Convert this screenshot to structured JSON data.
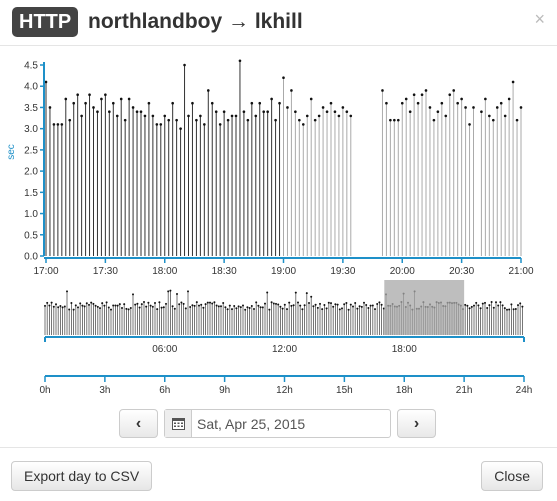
{
  "dialog": {
    "badge": "HTTP",
    "title": "northlandboy → lkhill",
    "close_glyph": "×",
    "close_icon": "close-icon"
  },
  "colors": {
    "axis": "#1e90c8",
    "stem_main": "#333333",
    "stem_faded": "#aaaaaa",
    "brush": "#a8a8a8",
    "text": "#333333"
  },
  "chart_data": [
    {
      "type": "scatter",
      "name": "detail",
      "ylabel": "sec",
      "y_ticks": [
        "0.0",
        "0.5",
        "1.0",
        "1.5",
        "2.0",
        "2.5",
        "3.0",
        "3.5",
        "4.0",
        "4.5"
      ],
      "ylim": [
        0,
        4.5
      ],
      "x_ticks": [
        "17:00",
        "17:30",
        "18:00",
        "18:30",
        "19:00",
        "19:30",
        "20:00",
        "20:30",
        "21:00"
      ],
      "x_range_min": [
        1020,
        1260
      ],
      "grid": false,
      "points": [
        [
          1020,
          4.1
        ],
        [
          1022,
          3.5
        ],
        [
          1024,
          3.1
        ],
        [
          1026,
          3.1
        ],
        [
          1028,
          3.1
        ],
        [
          1030,
          3.7
        ],
        [
          1032,
          3.2
        ],
        [
          1034,
          3.6
        ],
        [
          1036,
          3.8
        ],
        [
          1038,
          3.3
        ],
        [
          1040,
          3.6
        ],
        [
          1042,
          3.8
        ],
        [
          1044,
          3.5
        ],
        [
          1046,
          3.4
        ],
        [
          1048,
          3.7
        ],
        [
          1050,
          3.8
        ],
        [
          1052,
          3.4
        ],
        [
          1054,
          3.6
        ],
        [
          1056,
          3.3
        ],
        [
          1058,
          3.7
        ],
        [
          1060,
          3.2
        ],
        [
          1062,
          3.7
        ],
        [
          1064,
          3.5
        ],
        [
          1066,
          3.4
        ],
        [
          1068,
          3.4
        ],
        [
          1070,
          3.3
        ],
        [
          1072,
          3.6
        ],
        [
          1074,
          3.3
        ],
        [
          1076,
          3.1
        ],
        [
          1078,
          3.1
        ],
        [
          1080,
          3.3
        ],
        [
          1082,
          3.2
        ],
        [
          1084,
          3.6
        ],
        [
          1086,
          3.2
        ],
        [
          1088,
          3.0
        ],
        [
          1090,
          4.5
        ],
        [
          1092,
          3.3
        ],
        [
          1094,
          3.6
        ],
        [
          1096,
          3.2
        ],
        [
          1098,
          3.3
        ],
        [
          1100,
          3.1
        ],
        [
          1102,
          3.9
        ],
        [
          1104,
          3.6
        ],
        [
          1106,
          3.4
        ],
        [
          1108,
          3.1
        ],
        [
          1110,
          3.4
        ],
        [
          1112,
          3.2
        ],
        [
          1114,
          3.3
        ],
        [
          1116,
          3.3
        ],
        [
          1118,
          4.6
        ],
        [
          1120,
          3.4
        ],
        [
          1122,
          3.2
        ],
        [
          1124,
          3.6
        ],
        [
          1126,
          3.3
        ],
        [
          1128,
          3.6
        ],
        [
          1130,
          3.4
        ],
        [
          1132,
          3.4
        ],
        [
          1134,
          3.7
        ],
        [
          1136,
          3.2
        ],
        [
          1138,
          3.6
        ],
        [
          1140,
          4.2
        ],
        [
          1142,
          3.5
        ],
        [
          1144,
          3.9
        ],
        [
          1146,
          3.4
        ],
        [
          1148,
          3.2
        ],
        [
          1150,
          3.1
        ],
        [
          1152,
          3.3
        ],
        [
          1154,
          3.7
        ],
        [
          1156,
          3.2
        ],
        [
          1158,
          3.3
        ],
        [
          1160,
          3.5
        ],
        [
          1162,
          3.4
        ],
        [
          1164,
          3.6
        ],
        [
          1166,
          3.4
        ],
        [
          1168,
          3.3
        ],
        [
          1170,
          3.5
        ],
        [
          1172,
          3.4
        ],
        [
          1174,
          3.3
        ],
        [
          1190,
          3.9
        ],
        [
          1192,
          3.6
        ],
        [
          1194,
          3.2
        ],
        [
          1196,
          3.2
        ],
        [
          1198,
          3.2
        ],
        [
          1200,
          3.6
        ],
        [
          1202,
          3.7
        ],
        [
          1204,
          3.4
        ],
        [
          1206,
          3.8
        ],
        [
          1208,
          3.6
        ],
        [
          1210,
          3.8
        ],
        [
          1212,
          3.9
        ],
        [
          1214,
          3.5
        ],
        [
          1216,
          3.2
        ],
        [
          1218,
          3.4
        ],
        [
          1220,
          3.6
        ],
        [
          1222,
          3.3
        ],
        [
          1224,
          3.8
        ],
        [
          1226,
          3.9
        ],
        [
          1228,
          3.6
        ],
        [
          1230,
          3.7
        ],
        [
          1232,
          3.5
        ],
        [
          1234,
          3.1
        ],
        [
          1236,
          3.5
        ],
        [
          1240,
          3.4
        ],
        [
          1242,
          3.7
        ],
        [
          1244,
          3.3
        ],
        [
          1246,
          3.2
        ],
        [
          1248,
          3.5
        ],
        [
          1250,
          3.6
        ],
        [
          1252,
          3.3
        ],
        [
          1254,
          3.7
        ],
        [
          1256,
          4.1
        ],
        [
          1258,
          3.2
        ],
        [
          1260,
          3.5
        ]
      ],
      "faded_from_min": 1140
    },
    {
      "type": "scatter",
      "name": "overview-day",
      "x_ticks": [
        "06:00",
        "12:00",
        "18:00"
      ],
      "x_range_hours": [
        0,
        24
      ],
      "brush_hours": [
        17,
        21
      ]
    },
    {
      "type": "axis",
      "name": "range-selector",
      "x_ticks": [
        "0h",
        "3h",
        "6h",
        "9h",
        "12h",
        "15h",
        "18h",
        "21h",
        "24h"
      ],
      "x_range_hours": [
        0,
        24
      ]
    }
  ],
  "datebar": {
    "prev_glyph": "‹",
    "next_glyph": "›",
    "date_value": "Sat, Apr 25, 2015",
    "calendar_icon": "calendar-icon"
  },
  "footer": {
    "export_label": "Export day to CSV",
    "close_label": "Close"
  }
}
